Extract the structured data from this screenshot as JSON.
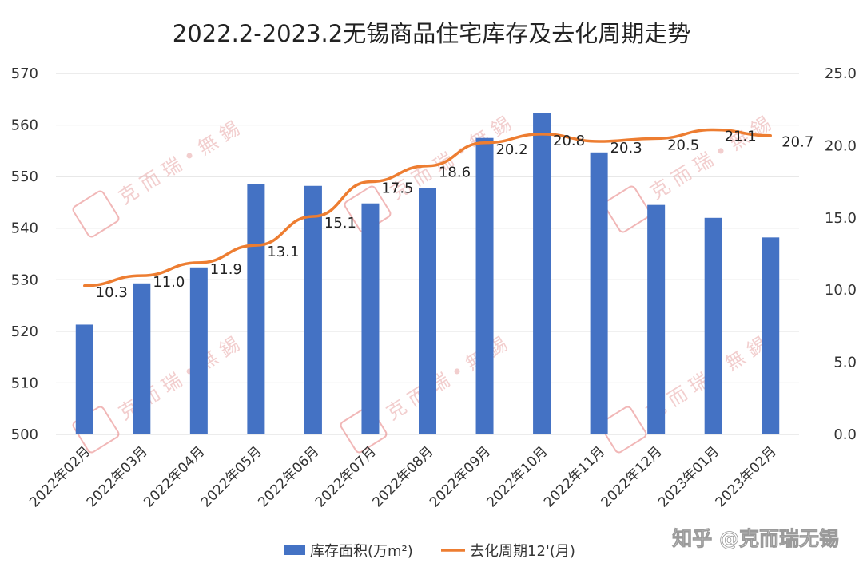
{
  "chart_data": {
    "type": "bar+line",
    "title": "2022.2-2023.2无锡商品住宅库存及去化周期走势",
    "categories": [
      "2022年02月",
      "2022年03月",
      "2022年04月",
      "2022年05月",
      "2022年06月",
      "2022年07月",
      "2022年08月",
      "2022年09月",
      "2022年10月",
      "2022年11月",
      "2022年12月",
      "2023年01月",
      "2023年02月"
    ],
    "series": [
      {
        "name": "库存面积(万m²)",
        "type": "bar",
        "axis": "left",
        "color": "#4472c4",
        "values": [
          521.3,
          529.3,
          532.4,
          548.6,
          548.2,
          544.8,
          547.8,
          557.5,
          562.4,
          554.7,
          544.5,
          542.0,
          538.2
        ]
      },
      {
        "name": "去化周期12'(月)",
        "type": "line",
        "axis": "right",
        "color": "#ed7d31",
        "values": [
          10.3,
          11.0,
          11.9,
          13.1,
          15.1,
          17.5,
          18.6,
          20.2,
          20.8,
          20.3,
          20.5,
          21.1,
          20.7
        ],
        "labels": [
          "10.3",
          "11.0",
          "11.9",
          "13.1",
          "15.1",
          "17.5",
          "18.6",
          "20.2",
          "20.8",
          "20.3",
          "20.5",
          "21.1",
          "20.7"
        ]
      }
    ],
    "ylim_left": [
      500,
      570
    ],
    "yticks_left": [
      "500",
      "510",
      "520",
      "530",
      "540",
      "550",
      "560",
      "570"
    ],
    "ylim_right": [
      0,
      25
    ],
    "yticks_right": [
      "0.0",
      "5.0",
      "10.0",
      "15.0",
      "20.0",
      "25.0"
    ],
    "grid": true,
    "legend_position": "bottom"
  },
  "watermark": {
    "text": "克 而 瑞 • 無 錫",
    "stamp_color": "#e57b7b",
    "source": "知乎 @克而瑞无锡"
  }
}
